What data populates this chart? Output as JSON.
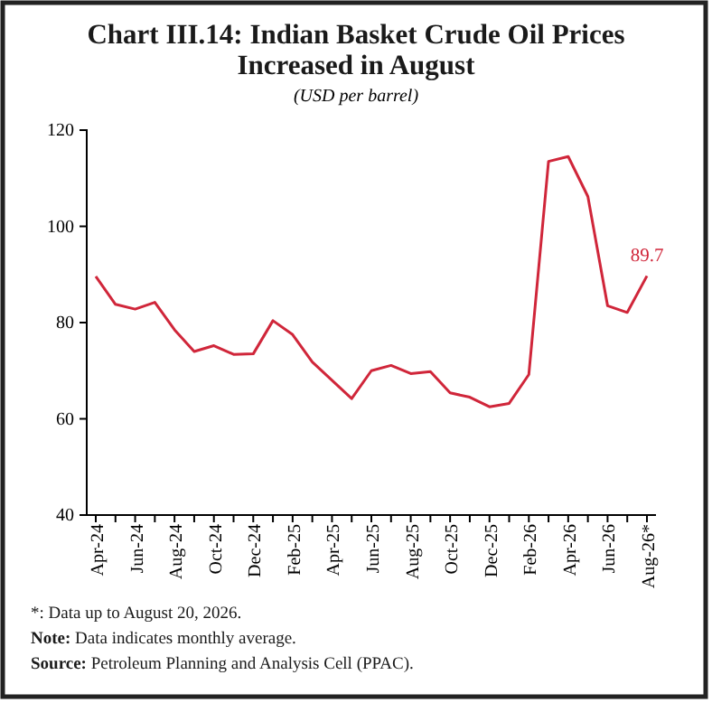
{
  "chart_data": {
    "type": "line",
    "title": "Chart III.14: Indian Basket Crude Oil Prices Increased in August",
    "subtitle": "(USD per barrel)",
    "categories": [
      "Apr-24",
      null,
      "Jun-24",
      null,
      "Aug-24",
      null,
      "Oct-24",
      null,
      "Dec-24",
      null,
      "Feb-25",
      null,
      "Apr-25",
      null,
      "Jun-25",
      null,
      "Aug-25",
      null,
      "Oct-25",
      null,
      "Dec-25",
      null,
      "Feb-26",
      null,
      "Apr-26",
      null,
      "Jun-26",
      null,
      "Aug-26*"
    ],
    "series": [
      {
        "color": "#d0263a",
        "values": [
          89.6,
          83.8,
          82.8,
          84.2,
          78.5,
          74.0,
          75.2,
          73.4,
          73.5,
          80.4,
          77.5,
          71.8,
          68.0,
          64.2,
          70.0,
          71.1,
          69.4,
          69.8,
          65.4,
          64.5,
          62.5,
          63.2,
          69.2,
          113.5,
          114.5,
          106.2,
          83.5,
          82.1,
          89.7
        ],
        "value_labels": [
          null,
          null,
          null,
          null,
          null,
          null,
          null,
          null,
          null,
          null,
          null,
          null,
          null,
          null,
          null,
          null,
          null,
          null,
          null,
          null,
          null,
          null,
          null,
          null,
          null,
          null,
          null,
          null,
          "89.7"
        ]
      }
    ],
    "ylim": [
      40,
      120
    ],
    "yticks": [
      40,
      60,
      80,
      100,
      120
    ],
    "grid": false,
    "legend": false,
    "marker": "none",
    "line_style": "solid",
    "annotations": [
      "*:  Data up to August 20, 2026.",
      "Note: Data indicates monthly average.",
      "Source: Petroleum Planning and Analysis Cell (PPAC)."
    ]
  }
}
